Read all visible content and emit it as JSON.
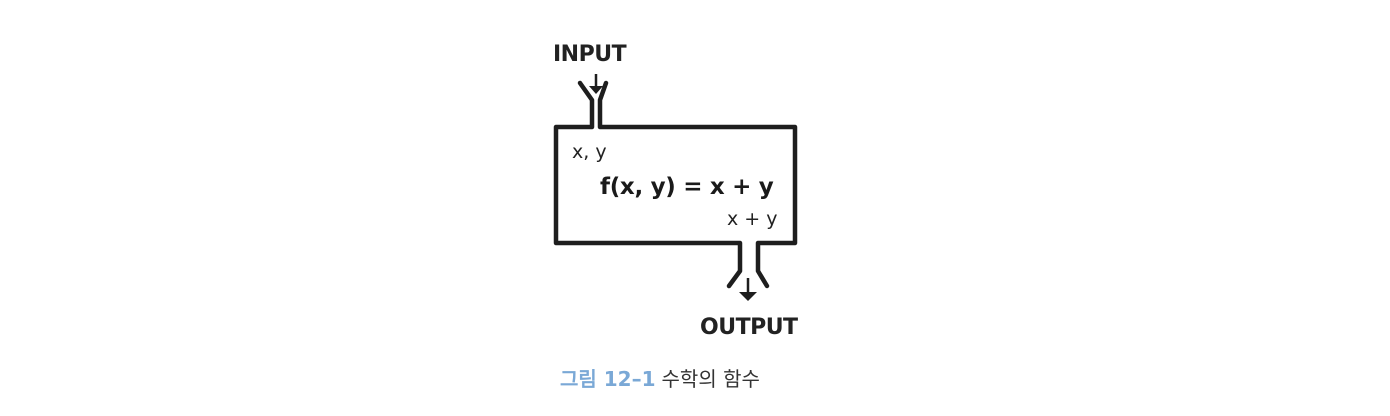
{
  "diagram": {
    "input_label": "INPUT",
    "output_label": "OUTPUT",
    "input_vars": "x, y",
    "formula": "f(x, y) = x + y",
    "output_expr": "x + y"
  },
  "caption": {
    "number": "그림 12–1",
    "text": "수학의 함수"
  },
  "colors": {
    "outline": "#1e1e1e",
    "caption_accent": "#7aa8d6"
  }
}
